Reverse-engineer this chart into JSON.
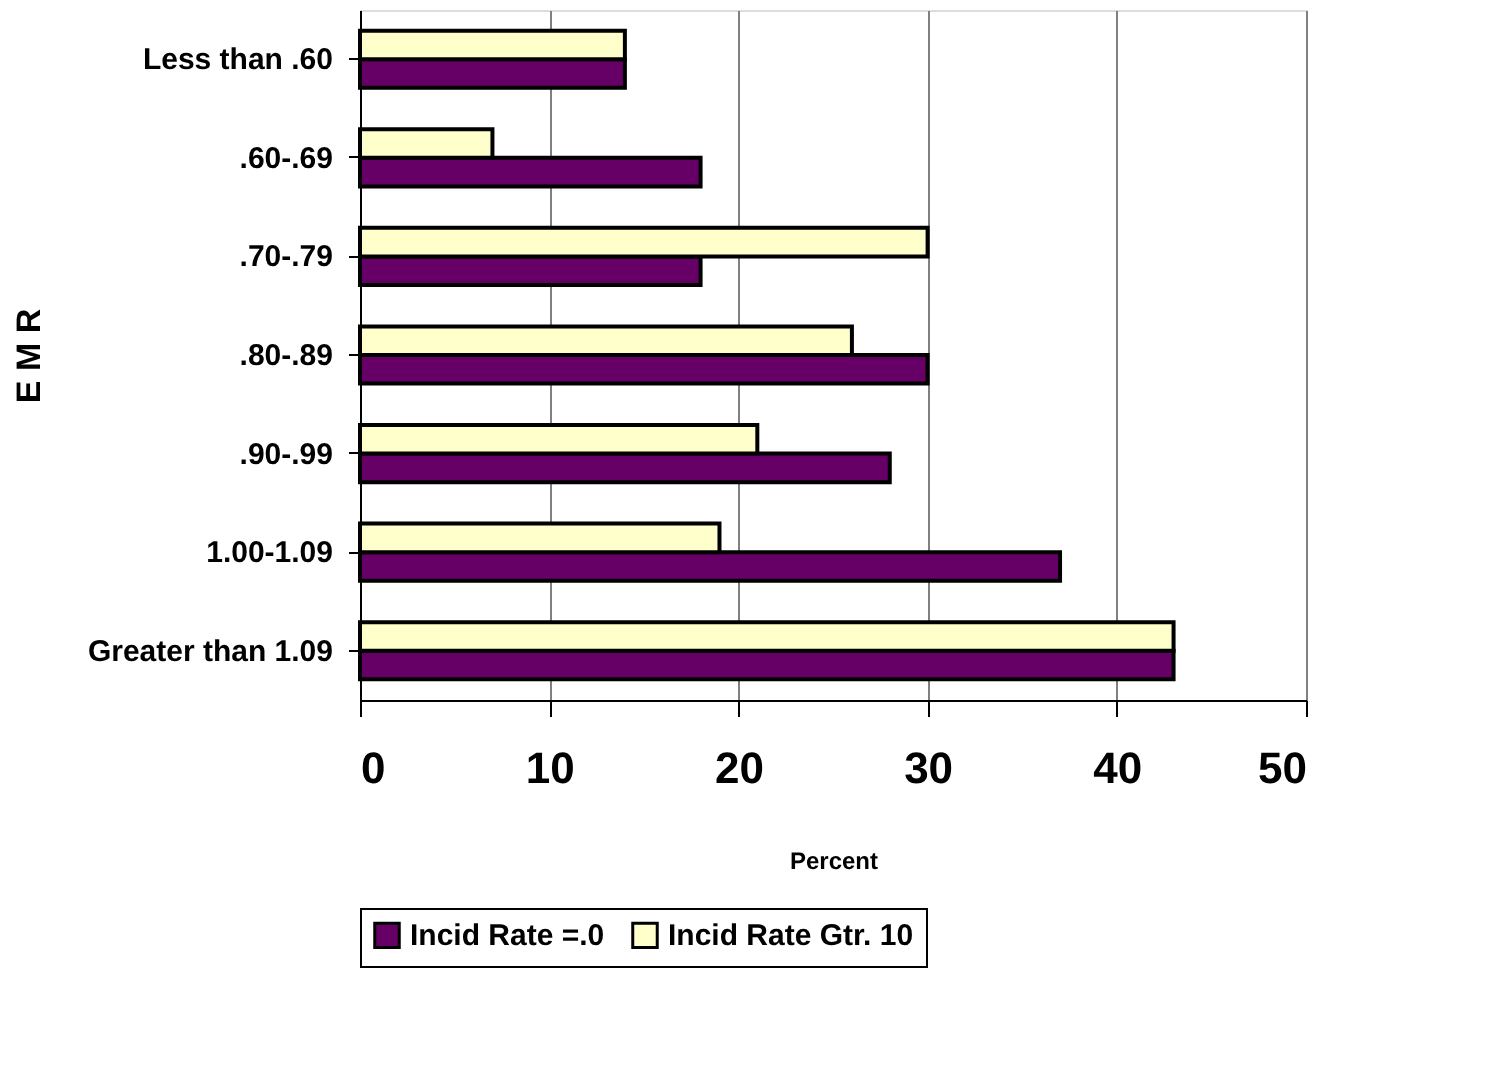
{
  "chart_data": {
    "type": "bar",
    "orientation": "horizontal",
    "xlabel": "Percent",
    "ylabel": "E M R",
    "categories": [
      "Less than .60",
      ".60-.69",
      ".70-.79",
      ".80-.89",
      ".90-.99",
      "1.00-1.09",
      "Greater than 1.09"
    ],
    "series": [
      {
        "name": "Incid Rate =.0",
        "color": "#660066",
        "values": [
          14,
          18,
          18,
          30,
          28,
          37,
          43
        ]
      },
      {
        "name": "Incid Rate Gtr. 10",
        "color": "#ffffcc",
        "values": [
          14,
          7,
          30,
          26,
          21,
          19,
          43
        ]
      }
    ],
    "xlim": [
      0,
      50
    ],
    "xticks": [
      0,
      10,
      20,
      30,
      40,
      50
    ],
    "grid": "x",
    "legend": "bottom"
  }
}
